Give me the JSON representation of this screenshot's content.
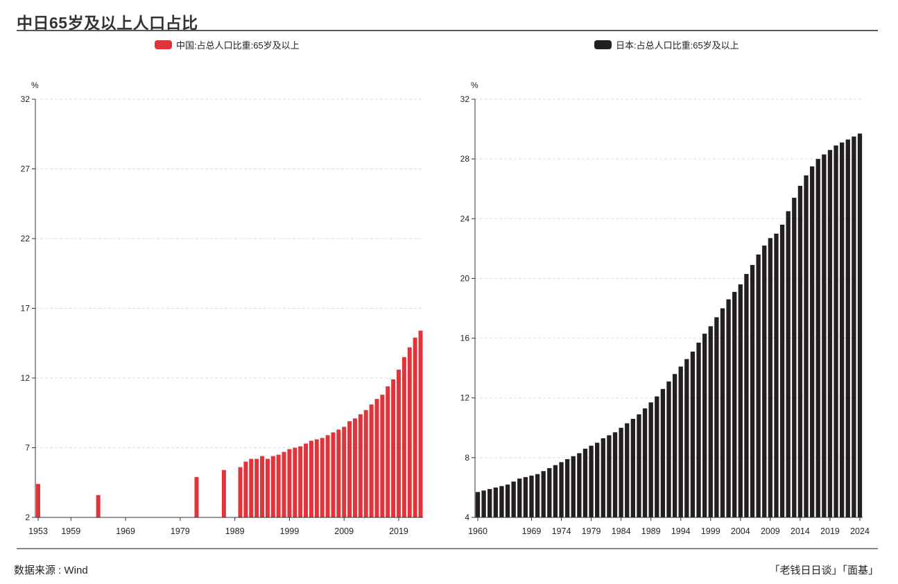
{
  "title": "中日65岁及以上人口占比",
  "source": "数据来源 : Wind",
  "brand": "「老钱日日谈」「面基」",
  "colors": {
    "china": "#e0333a",
    "japan": "#231f20",
    "grid": "#dddddd",
    "axis": "#333333"
  },
  "chart_data": [
    {
      "type": "bar",
      "legend": "中国:占总人口比重:65岁及以上",
      "unit": "%",
      "ylim": [
        2,
        32
      ],
      "yticks": [
        "2",
        "7",
        "12",
        "17",
        "22",
        "27",
        "32"
      ],
      "xlim": [
        1953,
        2023
      ],
      "xticks": [
        "1953",
        "1959",
        "1969",
        "1979",
        "1989",
        "1999",
        "2009",
        "2019"
      ],
      "grid": true,
      "x": [
        1953,
        1964,
        1982,
        1987,
        1990,
        1991,
        1992,
        1993,
        1994,
        1995,
        1996,
        1997,
        1998,
        1999,
        2000,
        2001,
        2002,
        2003,
        2004,
        2005,
        2006,
        2007,
        2008,
        2009,
        2010,
        2011,
        2012,
        2013,
        2014,
        2015,
        2016,
        2017,
        2018,
        2019,
        2020,
        2021,
        2022,
        2023
      ],
      "values": [
        4.4,
        3.6,
        4.9,
        5.4,
        5.6,
        6.0,
        6.2,
        6.2,
        6.4,
        6.2,
        6.4,
        6.5,
        6.7,
        6.9,
        7.0,
        7.1,
        7.3,
        7.5,
        7.6,
        7.7,
        7.9,
        8.1,
        8.3,
        8.5,
        8.9,
        9.1,
        9.4,
        9.7,
        10.1,
        10.5,
        10.8,
        11.4,
        11.9,
        12.6,
        13.5,
        14.2,
        14.9,
        15.4
      ]
    },
    {
      "type": "bar",
      "legend": "日本:占总人口比重:65岁及以上",
      "unit": "%",
      "ylim": [
        4,
        32
      ],
      "yticks": [
        "4",
        "8",
        "12",
        "16",
        "20",
        "24",
        "28",
        "32"
      ],
      "xlim": [
        1960,
        2024
      ],
      "xticks": [
        "1960",
        "1969",
        "1974",
        "1979",
        "1984",
        "1989",
        "1994",
        "1999",
        "2004",
        "2009",
        "2014",
        "2019",
        "2024"
      ],
      "grid": true,
      "x": [
        1960,
        1961,
        1962,
        1963,
        1964,
        1965,
        1966,
        1967,
        1968,
        1969,
        1970,
        1971,
        1972,
        1973,
        1974,
        1975,
        1976,
        1977,
        1978,
        1979,
        1980,
        1981,
        1982,
        1983,
        1984,
        1985,
        1986,
        1987,
        1988,
        1989,
        1990,
        1991,
        1992,
        1993,
        1994,
        1995,
        1996,
        1997,
        1998,
        1999,
        2000,
        2001,
        2002,
        2003,
        2004,
        2005,
        2006,
        2007,
        2008,
        2009,
        2010,
        2011,
        2012,
        2013,
        2014,
        2015,
        2016,
        2017,
        2018,
        2019,
        2020,
        2021,
        2022,
        2023,
        2024
      ],
      "values": [
        5.7,
        5.8,
        5.9,
        6.0,
        6.1,
        6.2,
        6.4,
        6.6,
        6.7,
        6.8,
        6.9,
        7.1,
        7.3,
        7.5,
        7.7,
        7.9,
        8.1,
        8.3,
        8.6,
        8.8,
        9.0,
        9.3,
        9.5,
        9.7,
        10.0,
        10.3,
        10.6,
        10.9,
        11.3,
        11.7,
        12.1,
        12.6,
        13.1,
        13.6,
        14.1,
        14.6,
        15.1,
        15.7,
        16.3,
        16.8,
        17.4,
        18.0,
        18.6,
        19.1,
        19.6,
        20.3,
        20.9,
        21.6,
        22.2,
        22.7,
        23.0,
        23.6,
        24.5,
        25.4,
        26.2,
        26.9,
        27.5,
        28.0,
        28.3,
        28.6,
        28.9,
        29.1,
        29.3,
        29.5,
        29.7
      ]
    }
  ]
}
